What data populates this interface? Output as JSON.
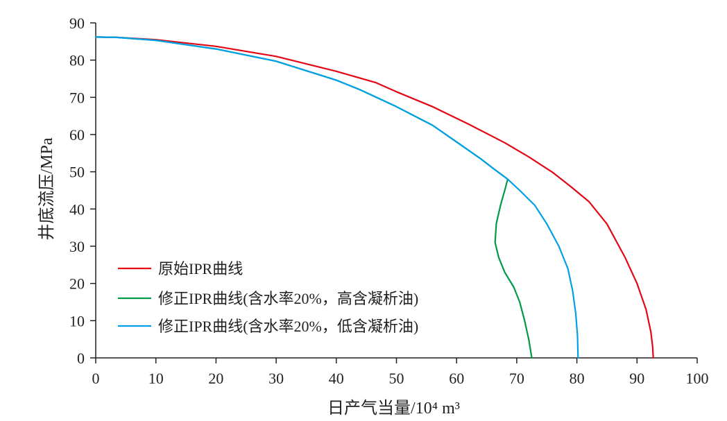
{
  "chart_data": {
    "type": "line",
    "xlabel": "日产气当量/10⁴ m³",
    "ylabel": "井底流压/MPa",
    "xlim": [
      0,
      100
    ],
    "ylim": [
      0,
      90
    ],
    "xticks": [
      0,
      10,
      20,
      30,
      40,
      50,
      60,
      70,
      80,
      90,
      100
    ],
    "yticks": [
      0,
      10,
      20,
      30,
      40,
      50,
      60,
      70,
      80,
      90
    ],
    "grid": false,
    "legend_position": "bottom-left",
    "series": [
      {
        "name": "原始IPR曲线",
        "color": "#e30613",
        "points": [
          [
            0,
            86.2
          ],
          [
            3.5,
            86.1
          ],
          [
            10,
            85.5
          ],
          [
            20,
            83.7
          ],
          [
            30,
            81.0
          ],
          [
            40,
            77.0
          ],
          [
            46.5,
            74.0
          ],
          [
            50,
            71.5
          ],
          [
            56,
            67.5
          ],
          [
            62,
            62.8
          ],
          [
            68,
            57.8
          ],
          [
            72,
            54.0
          ],
          [
            76,
            49.8
          ],
          [
            79,
            46.0
          ],
          [
            82,
            42.0
          ],
          [
            85,
            36.0
          ],
          [
            88,
            27.0
          ],
          [
            90,
            20.0
          ],
          [
            91.5,
            13.0
          ],
          [
            92.3,
            7.0
          ],
          [
            92.6,
            3.0
          ],
          [
            92.7,
            0
          ]
        ]
      },
      {
        "name": "修正IPR曲线(含水率20%，高含凝析油)",
        "color": "#009a44",
        "points": [
          [
            0,
            86.2
          ],
          [
            3.5,
            86.1
          ],
          [
            10,
            85.3
          ],
          [
            20,
            83.0
          ],
          [
            30,
            79.7
          ],
          [
            40,
            74.6
          ],
          [
            44,
            72.0
          ],
          [
            50,
            67.5
          ],
          [
            56,
            62.5
          ],
          [
            60,
            58.0
          ],
          [
            64,
            53.5
          ],
          [
            66,
            51.0
          ],
          [
            68.5,
            48.0
          ],
          [
            68.0,
            45.0
          ],
          [
            67.3,
            41.0
          ],
          [
            66.6,
            36.0
          ],
          [
            66.4,
            31.0
          ],
          [
            67.0,
            27.0
          ],
          [
            68.0,
            23.0
          ],
          [
            69.5,
            19.0
          ],
          [
            70.5,
            15.0
          ],
          [
            71.3,
            10.0
          ],
          [
            72.0,
            5.0
          ],
          [
            72.5,
            0
          ]
        ]
      },
      {
        "name": "修正IPR曲线(含水率20%，低含凝析油)",
        "color": "#00a0e9",
        "points": [
          [
            0,
            86.2
          ],
          [
            3.5,
            86.1
          ],
          [
            10,
            85.3
          ],
          [
            20,
            83.0
          ],
          [
            30,
            79.7
          ],
          [
            40,
            74.6
          ],
          [
            44,
            72.0
          ],
          [
            50,
            67.5
          ],
          [
            56,
            62.5
          ],
          [
            60,
            58.0
          ],
          [
            64,
            53.5
          ],
          [
            66,
            51.0
          ],
          [
            68.5,
            48.0
          ],
          [
            70.5,
            45.0
          ],
          [
            73.0,
            41.0
          ],
          [
            75.0,
            36.0
          ],
          [
            77.0,
            30.0
          ],
          [
            78.5,
            24.0
          ],
          [
            79.3,
            18.0
          ],
          [
            79.8,
            12.0
          ],
          [
            80.1,
            6.0
          ],
          [
            80.2,
            0
          ]
        ]
      }
    ]
  }
}
